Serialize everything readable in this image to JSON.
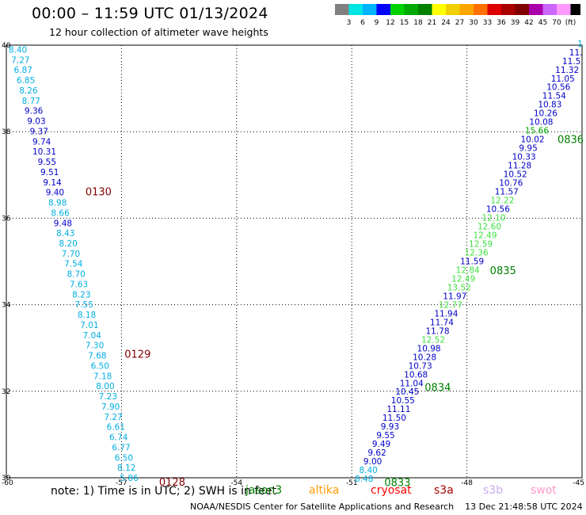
{
  "title": "00:00 – 11:59 UTC 01/13/2024",
  "subtitle": "12 hour collection of altimeter wave heights",
  "colorbar": {
    "colors": [
      "#808080",
      "#00e6e6",
      "#00b4ff",
      "#0000ff",
      "#00d200",
      "#00aa00",
      "#008000",
      "#ffff00",
      "#f0d000",
      "#ffa500",
      "#ff7000",
      "#dd0000",
      "#aa0000",
      "#800000",
      "#aa00aa",
      "#cc66ff",
      "#ff99ff",
      "#000000"
    ],
    "labels": [
      "3",
      "6",
      "9",
      "12",
      "15",
      "18",
      "21",
      "24",
      "27",
      "30",
      "33",
      "36",
      "39",
      "42",
      "45",
      "70",
      "(ft)"
    ]
  },
  "axes": {
    "x_ticks": [
      "-60",
      "-57",
      "-54",
      "-51",
      "-48",
      "-45"
    ],
    "y_ticks": [
      "40",
      "38",
      "36",
      "34",
      "32",
      "30"
    ],
    "lon_range": [
      -60,
      -45
    ],
    "lat_range": [
      30,
      40
    ]
  },
  "tracks": [
    {
      "start": [
        -59.7,
        39.9
      ],
      "end": [
        -56.8,
        30.0
      ],
      "values": [
        "8.40",
        "7.27",
        "6.87",
        "6.85",
        "8.26",
        "8.77",
        "9.36",
        "9.03",
        "9.37",
        "9.74",
        "10.31",
        "9.55",
        "9.51",
        "9.14",
        "9.40",
        "8.98",
        "8.66",
        "9.48",
        "8.43",
        "8.20",
        "7.70",
        "7.54",
        "8.70",
        "7.63",
        "8.23",
        "7.55",
        "8.18",
        "7.01",
        "7.04",
        "7.30",
        "7.68",
        "6.50",
        "7.18",
        "8.00",
        "7.23",
        "7.90",
        "7.27",
        "6.61",
        "6.74",
        "6.77",
        "6.50",
        "8.12",
        "5.86"
      ],
      "times": [
        {
          "label": "0130",
          "lon": -57.94,
          "lat": 36.62
        },
        {
          "label": "0129",
          "lon": -56.92,
          "lat": 32.87
        },
        {
          "label": "0128",
          "lon": -56.02,
          "lat": 29.91
        }
      ]
    },
    {
      "start": [
        -50.68,
        29.98
      ],
      "end": [
        -45.05,
        40.04
      ],
      "values": [
        "8.48",
        "8.40",
        "9.00",
        "9.62",
        "9.49",
        "9.55",
        "9.93",
        "11.50",
        "11.11",
        "10.55",
        "10.45",
        "11.04",
        "10.68",
        "10.73",
        "10.28",
        "10.98",
        "12.52",
        "11.78",
        "11.74",
        "11.94",
        "12.77",
        "11.97",
        "13.52",
        "12.49",
        "12.84",
        "11.59",
        "12.36",
        "12.59",
        "12.49",
        "12.60",
        "12.10",
        "10.56",
        "12.22",
        "11.57",
        "10.76",
        "10.52",
        "11.28",
        "10.33",
        "9.95",
        "10.02",
        "15.66",
        "10.08",
        "10.26",
        "10.83",
        "11.54",
        "10.56",
        "11.05",
        "11.32",
        "11.5",
        "11.",
        "1"
      ],
      "times": [
        {
          "label": "0836",
          "lon": -45.64,
          "lat": 37.83
        },
        {
          "label": "0835",
          "lon": -47.4,
          "lat": 34.8
        },
        {
          "label": "0834",
          "lon": -49.1,
          "lat": 32.1
        },
        {
          "label": "0833",
          "lon": -50.15,
          "lat": 29.9
        }
      ]
    }
  ],
  "note": "note: 1) Time is in UTC; 2) SWH is in feet",
  "satellites": [
    {
      "name": "jason3",
      "color": "#008000"
    },
    {
      "name": "altika",
      "color": "#ff9900"
    },
    {
      "name": "cryosat",
      "color": "#ff0000"
    },
    {
      "name": "s3a",
      "color": "#aa0000"
    },
    {
      "name": "s3b",
      "color": "#ccaaee"
    },
    {
      "name": "swot",
      "color": "#ff99cc"
    }
  ],
  "footer": "NOAA/NESDIS Center for Satellite Applications and Research    13 Dec 21:48:58 UTC 2024"
}
